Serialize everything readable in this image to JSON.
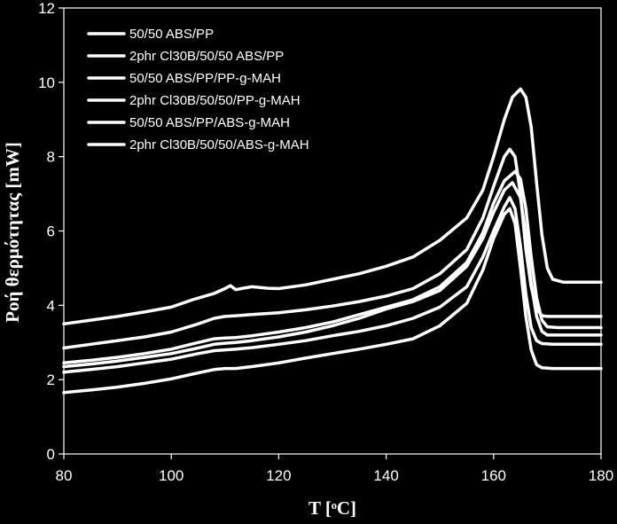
{
  "chart_data": {
    "type": "line",
    "xlabel": "T [ᵒC]",
    "ylabel": "Ροή θερμότητας [mW]",
    "xlim": [
      80,
      180
    ],
    "ylim": [
      0,
      12
    ],
    "xticks": [
      "80",
      "100",
      "120",
      "140",
      "160",
      "180"
    ],
    "yticks": [
      "0",
      "2",
      "4",
      "6",
      "8",
      "10",
      "12"
    ],
    "grid": false,
    "legend_position": "top-left",
    "colors": {
      "background": "#000000",
      "foreground": "#ffffff",
      "series": "#ffffff"
    },
    "series": [
      {
        "name": "50/50 ABS/PP",
        "points": [
          [
            80,
            3.5
          ],
          [
            85,
            3.6
          ],
          [
            90,
            3.7
          ],
          [
            95,
            3.82
          ],
          [
            100,
            3.95
          ],
          [
            104,
            4.15
          ],
          [
            108,
            4.32
          ],
          [
            110,
            4.45
          ],
          [
            111,
            4.53
          ],
          [
            112,
            4.42
          ],
          [
            113,
            4.45
          ],
          [
            115,
            4.5
          ],
          [
            118,
            4.46
          ],
          [
            120,
            4.45
          ],
          [
            125,
            4.55
          ],
          [
            130,
            4.7
          ],
          [
            135,
            4.85
          ],
          [
            140,
            5.05
          ],
          [
            145,
            5.3
          ],
          [
            150,
            5.75
          ],
          [
            155,
            6.35
          ],
          [
            158,
            7.1
          ],
          [
            160,
            8.0
          ],
          [
            162,
            9.0
          ],
          [
            163.5,
            9.6
          ],
          [
            165,
            9.82
          ],
          [
            166,
            9.6
          ],
          [
            167,
            8.8
          ],
          [
            168,
            7.3
          ],
          [
            169,
            5.9
          ],
          [
            170,
            5.0
          ],
          [
            171,
            4.7
          ],
          [
            173,
            4.62
          ],
          [
            180,
            4.62
          ]
        ]
      },
      {
        "name": "2phr Cl30B/50/50 ABS/PP",
        "points": [
          [
            80,
            2.85
          ],
          [
            85,
            2.95
          ],
          [
            90,
            3.05
          ],
          [
            95,
            3.15
          ],
          [
            100,
            3.28
          ],
          [
            105,
            3.5
          ],
          [
            108,
            3.65
          ],
          [
            110,
            3.7
          ],
          [
            112,
            3.72
          ],
          [
            115,
            3.75
          ],
          [
            120,
            3.8
          ],
          [
            125,
            3.88
          ],
          [
            130,
            3.98
          ],
          [
            135,
            4.1
          ],
          [
            140,
            4.25
          ],
          [
            145,
            4.45
          ],
          [
            150,
            4.85
          ],
          [
            155,
            5.5
          ],
          [
            158,
            6.35
          ],
          [
            160,
            7.2
          ],
          [
            162,
            8.0
          ],
          [
            163,
            8.2
          ],
          [
            164,
            8.0
          ],
          [
            165,
            7.0
          ],
          [
            166,
            5.5
          ],
          [
            167,
            4.5
          ],
          [
            168,
            3.9
          ],
          [
            169,
            3.72
          ],
          [
            170,
            3.7
          ],
          [
            180,
            3.7
          ]
        ]
      },
      {
        "name": "50/50 ABS/PP/PP-g-MAH",
        "points": [
          [
            80,
            2.45
          ],
          [
            85,
            2.52
          ],
          [
            90,
            2.6
          ],
          [
            95,
            2.7
          ],
          [
            100,
            2.82
          ],
          [
            105,
            3.0
          ],
          [
            108,
            3.1
          ],
          [
            110,
            3.12
          ],
          [
            112,
            3.13
          ],
          [
            115,
            3.18
          ],
          [
            120,
            3.28
          ],
          [
            125,
            3.4
          ],
          [
            130,
            3.55
          ],
          [
            135,
            3.75
          ],
          [
            140,
            3.95
          ],
          [
            145,
            4.15
          ],
          [
            150,
            4.5
          ],
          [
            155,
            5.15
          ],
          [
            158,
            5.95
          ],
          [
            160,
            6.75
          ],
          [
            162,
            7.35
          ],
          [
            164,
            7.6
          ],
          [
            165,
            7.4
          ],
          [
            166,
            6.6
          ],
          [
            167,
            5.3
          ],
          [
            168,
            4.2
          ],
          [
            169,
            3.6
          ],
          [
            170,
            3.42
          ],
          [
            172,
            3.4
          ],
          [
            180,
            3.4
          ]
        ]
      },
      {
        "name": "2phr Cl30B/50/50/PP-g-MAH",
        "points": [
          [
            80,
            2.35
          ],
          [
            85,
            2.42
          ],
          [
            90,
            2.5
          ],
          [
            95,
            2.6
          ],
          [
            100,
            2.7
          ],
          [
            105,
            2.85
          ],
          [
            108,
            2.95
          ],
          [
            110,
            2.98
          ],
          [
            112,
            3.0
          ],
          [
            115,
            3.05
          ],
          [
            120,
            3.15
          ],
          [
            125,
            3.28
          ],
          [
            130,
            3.45
          ],
          [
            135,
            3.65
          ],
          [
            140,
            3.9
          ],
          [
            145,
            4.1
          ],
          [
            150,
            4.4
          ],
          [
            155,
            5.05
          ],
          [
            158,
            5.8
          ],
          [
            160,
            6.5
          ],
          [
            162,
            7.1
          ],
          [
            163.5,
            7.3
          ],
          [
            165,
            6.9
          ],
          [
            166,
            5.9
          ],
          [
            167,
            4.6
          ],
          [
            168,
            3.7
          ],
          [
            169,
            3.3
          ],
          [
            170,
            3.2
          ],
          [
            172,
            3.2
          ],
          [
            180,
            3.2
          ]
        ]
      },
      {
        "name": "50/50 ABS/PP/ABS-g-MAH",
        "points": [
          [
            80,
            2.2
          ],
          [
            85,
            2.27
          ],
          [
            90,
            2.35
          ],
          [
            95,
            2.45
          ],
          [
            100,
            2.55
          ],
          [
            105,
            2.7
          ],
          [
            108,
            2.78
          ],
          [
            110,
            2.8
          ],
          [
            112,
            2.82
          ],
          [
            115,
            2.86
          ],
          [
            120,
            2.95
          ],
          [
            125,
            3.05
          ],
          [
            130,
            3.18
          ],
          [
            135,
            3.3
          ],
          [
            140,
            3.45
          ],
          [
            145,
            3.65
          ],
          [
            150,
            3.95
          ],
          [
            155,
            4.5
          ],
          [
            158,
            5.3
          ],
          [
            160,
            6.0
          ],
          [
            162,
            6.65
          ],
          [
            163,
            6.9
          ],
          [
            164,
            6.6
          ],
          [
            165,
            5.6
          ],
          [
            166,
            4.3
          ],
          [
            167,
            3.4
          ],
          [
            168,
            3.05
          ],
          [
            169,
            2.97
          ],
          [
            171,
            2.95
          ],
          [
            180,
            2.95
          ]
        ]
      },
      {
        "name": "2phr Cl30B/50/50/ABS-g-MAH",
        "points": [
          [
            80,
            1.65
          ],
          [
            85,
            1.72
          ],
          [
            90,
            1.8
          ],
          [
            95,
            1.9
          ],
          [
            100,
            2.02
          ],
          [
            105,
            2.18
          ],
          [
            108,
            2.27
          ],
          [
            110,
            2.3
          ],
          [
            112,
            2.3
          ],
          [
            115,
            2.35
          ],
          [
            120,
            2.45
          ],
          [
            125,
            2.58
          ],
          [
            130,
            2.7
          ],
          [
            135,
            2.82
          ],
          [
            140,
            2.95
          ],
          [
            145,
            3.1
          ],
          [
            150,
            3.45
          ],
          [
            155,
            4.05
          ],
          [
            158,
            4.95
          ],
          [
            160,
            5.8
          ],
          [
            162,
            6.45
          ],
          [
            163,
            6.6
          ],
          [
            164,
            6.2
          ],
          [
            165,
            5.0
          ],
          [
            166,
            3.7
          ],
          [
            167,
            2.8
          ],
          [
            168,
            2.4
          ],
          [
            169,
            2.32
          ],
          [
            171,
            2.3
          ],
          [
            180,
            2.3
          ]
        ]
      }
    ]
  }
}
